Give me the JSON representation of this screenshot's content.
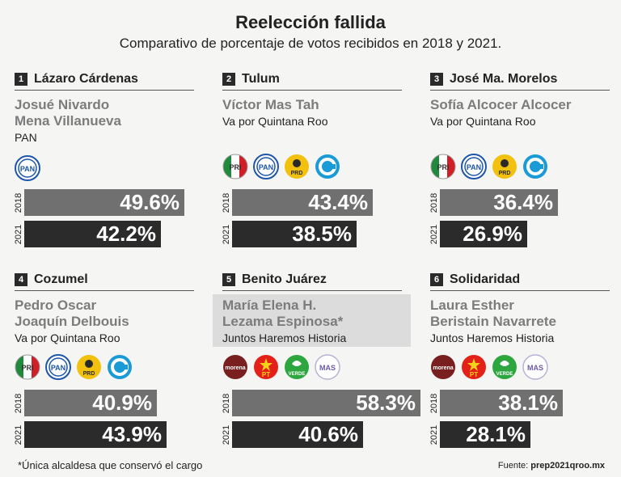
{
  "title": "Reelección fallida",
  "subtitle": "Comparativo de porcentaje de votos recibidos en 2018 y 2021.",
  "footnote": "*Única alcaldesa que conservó el cargo",
  "source_label": "Fuente:",
  "source_value": "prep2021qroo.mx",
  "colors": {
    "bar_2018": "#707070",
    "bar_2021": "#2b2b2b",
    "candidate_text": "#7c7c7c",
    "highlight_bg": "#dcdcdc"
  },
  "chart_data": {
    "type": "bar",
    "title": "Reelección fallida",
    "subtitle": "Comparativo de porcentaje de votos recibidos en 2018 y 2021.",
    "unit": "%",
    "series_labels": [
      "2018",
      "2021"
    ],
    "ylim": [
      0,
      60
    ],
    "panels": [
      {
        "number": "1",
        "municipality": "Lázaro Cárdenas",
        "candidate": "Josué Nivardo\nMena Villanueva",
        "party": "PAN",
        "logos": [
          "pan"
        ],
        "highlight": false,
        "values": [
          {
            "year": "2018",
            "value": 49.6,
            "label": "49.6%"
          },
          {
            "year": "2021",
            "value": 42.2,
            "label": "42.2%"
          }
        ]
      },
      {
        "number": "2",
        "municipality": "Tulum",
        "candidate": "Víctor Mas Tah",
        "party": "Va por Quintana Roo",
        "logos": [
          "pri",
          "pan",
          "prd",
          "confianza"
        ],
        "highlight": false,
        "values": [
          {
            "year": "2018",
            "value": 43.4,
            "label": "43.4%"
          },
          {
            "year": "2021",
            "value": 38.5,
            "label": "38.5%"
          }
        ]
      },
      {
        "number": "3",
        "municipality": "José Ma. Morelos",
        "candidate": "Sofía Alcocer Alcocer",
        "party": "Va por Quintana Roo",
        "logos": [
          "pri",
          "pan",
          "prd",
          "confianza"
        ],
        "highlight": false,
        "values": [
          {
            "year": "2018",
            "value": 36.4,
            "label": "36.4%"
          },
          {
            "year": "2021",
            "value": 26.9,
            "label": "26.9%"
          }
        ]
      },
      {
        "number": "4",
        "municipality": "Cozumel",
        "candidate": "Pedro Oscar\nJoaquín Delbouis",
        "party": "Va por Quintana Roo",
        "logos": [
          "pri",
          "pan",
          "prd",
          "confianza"
        ],
        "highlight": false,
        "values": [
          {
            "year": "2018",
            "value": 40.9,
            "label": "40.9%"
          },
          {
            "year": "2021",
            "value": 43.9,
            "label": "43.9%"
          }
        ]
      },
      {
        "number": "5",
        "municipality": "Benito Juárez",
        "candidate": "María Elena H.\nLezama Espinosa*",
        "party": "Juntos Haremos Historia",
        "logos": [
          "morena",
          "pt",
          "verde",
          "mas"
        ],
        "highlight": true,
        "values": [
          {
            "year": "2018",
            "value": 58.3,
            "label": "58.3%"
          },
          {
            "year": "2021",
            "value": 40.6,
            "label": "40.6%"
          }
        ]
      },
      {
        "number": "6",
        "municipality": "Solidaridad",
        "candidate": "Laura Esther\nBeristain Navarrete",
        "party": "Juntos Haremos Historia",
        "logos": [
          "morena",
          "pt",
          "verde",
          "mas"
        ],
        "highlight": false,
        "values": [
          {
            "year": "2018",
            "value": 38.1,
            "label": "38.1%"
          },
          {
            "year": "2021",
            "value": 28.1,
            "label": "28.1%"
          }
        ]
      }
    ]
  }
}
